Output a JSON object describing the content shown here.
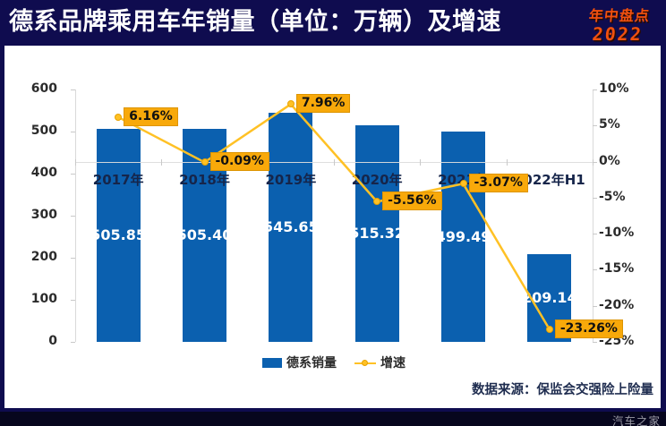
{
  "header": {
    "title": "德系品牌乘用车年销量（单位：万辆）及增速",
    "badge_line1": "年中盘点",
    "badge_line2": "2022"
  },
  "footer": {
    "source_note": "数据来源：保监会交强险上险量",
    "watermark": "汽车之家"
  },
  "chart_data": {
    "type": "bar+line combo",
    "title": "德系品牌乘用车年销量（单位：万辆）及增速",
    "categories": [
      "2017年",
      "2018年",
      "2019年",
      "2020年",
      "2021年",
      "2022年H1"
    ],
    "series": [
      {
        "name": "德系销量",
        "type": "bar",
        "axis": "left",
        "unit": "万辆",
        "color": "#0B60AF",
        "values": [
          505.85,
          505.4,
          545.65,
          515.32,
          499.49,
          209.14
        ],
        "value_labels": [
          "505.85",
          "505.40",
          "545.65",
          "515.32",
          "499.49",
          "209.14"
        ]
      },
      {
        "name": "增速",
        "type": "line",
        "axis": "right",
        "unit": "%",
        "color": "#FFC125",
        "values": [
          6.16,
          -0.09,
          7.96,
          -5.56,
          -3.07,
          -23.26
        ],
        "value_labels": [
          "6.16%",
          "-0.09%",
          "7.96%",
          "-5.56%",
          "-3.07%",
          "-23.26%"
        ]
      }
    ],
    "left_axis": {
      "min": 0,
      "max": 600,
      "tick_values": [
        600,
        500,
        400,
        300,
        200,
        100,
        0
      ],
      "tick_labels": [
        "600",
        "500",
        "400",
        "300",
        "200",
        "100",
        "0"
      ]
    },
    "right_axis": {
      "min": -25,
      "max": 10,
      "tick_values": [
        10,
        5,
        0,
        -5,
        -10,
        -15,
        -20,
        -25
      ],
      "tick_labels": [
        "10%",
        "5%",
        "0%",
        "-5%",
        "-10%",
        "-15%",
        "-20%",
        "-25%"
      ]
    },
    "legend": {
      "position": "bottom-center",
      "items": [
        "德系销量",
        "增速"
      ]
    },
    "grid": "zero-line-only",
    "colors": {
      "background": "#0F0C4F",
      "panel": "#FFFFFF",
      "bar": "#0B60AF",
      "line": "#FFC125",
      "growth_label_bg": "#F8A90A",
      "axis_gray": "#D9D9D9",
      "year_label_text": "#16254A",
      "value_label_text": "#FFFFFF",
      "title_text": "#FFFFFF",
      "badge_text": "#F0500F"
    }
  }
}
